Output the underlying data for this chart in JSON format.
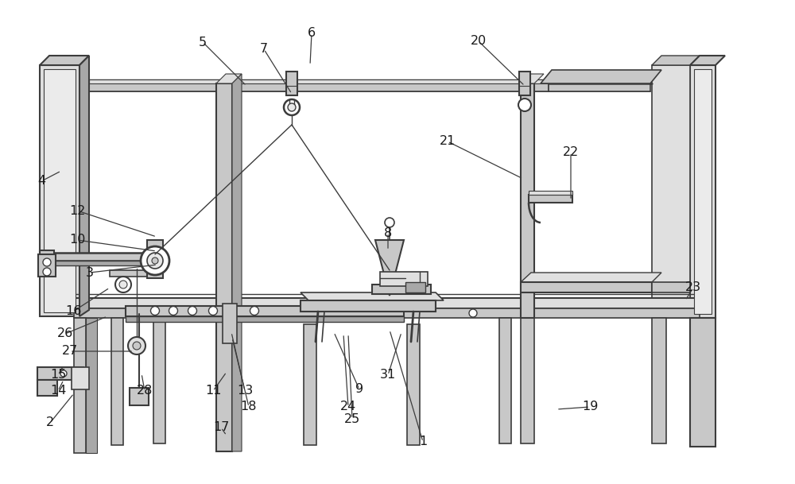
{
  "background_color": "#ffffff",
  "line_color": "#3c3c3c",
  "label_fontsize": 11.5,
  "label_color": "#1a1a1a",
  "figsize": [
    10.0,
    6.09
  ],
  "dpi": 100,
  "gray_light": "#e0e0e0",
  "gray_mid": "#c8c8c8",
  "gray_dark": "#a8a8a8",
  "labels": [
    [
      "1",
      532,
      556,
      490,
      415
    ],
    [
      "2",
      63,
      532,
      93,
      495
    ],
    [
      "3",
      113,
      343,
      198,
      333
    ],
    [
      "4",
      52,
      228,
      77,
      215
    ],
    [
      "5",
      255,
      53,
      310,
      108
    ],
    [
      "6",
      392,
      42,
      390,
      82
    ],
    [
      "7",
      332,
      62,
      367,
      118
    ],
    [
      "8",
      488,
      293,
      488,
      315
    ],
    [
      "9",
      452,
      490,
      420,
      418
    ],
    [
      "10",
      97,
      302,
      197,
      316
    ],
    [
      "11",
      268,
      492,
      285,
      468
    ],
    [
      "12",
      97,
      265,
      197,
      298
    ],
    [
      "13",
      308,
      492,
      291,
      418
    ],
    [
      "14",
      73,
      492,
      80,
      478
    ],
    [
      "15",
      73,
      472,
      80,
      460
    ],
    [
      "16",
      92,
      392,
      138,
      362
    ],
    [
      "17",
      278,
      538,
      285,
      548
    ],
    [
      "18",
      313,
      512,
      292,
      425
    ],
    [
      "19",
      742,
      512,
      700,
      515
    ],
    [
      "20",
      602,
      52,
      660,
      108
    ],
    [
      "21",
      563,
      178,
      658,
      225
    ],
    [
      "22",
      718,
      192,
      718,
      252
    ],
    [
      "23",
      872,
      362,
      862,
      378
    ],
    [
      "24",
      438,
      512,
      432,
      420
    ],
    [
      "25",
      443,
      527,
      438,
      420
    ],
    [
      "26",
      82,
      420,
      135,
      398
    ],
    [
      "27",
      88,
      442,
      168,
      442
    ],
    [
      "28",
      182,
      492,
      178,
      470
    ],
    [
      "31",
      488,
      472,
      505,
      418
    ]
  ]
}
